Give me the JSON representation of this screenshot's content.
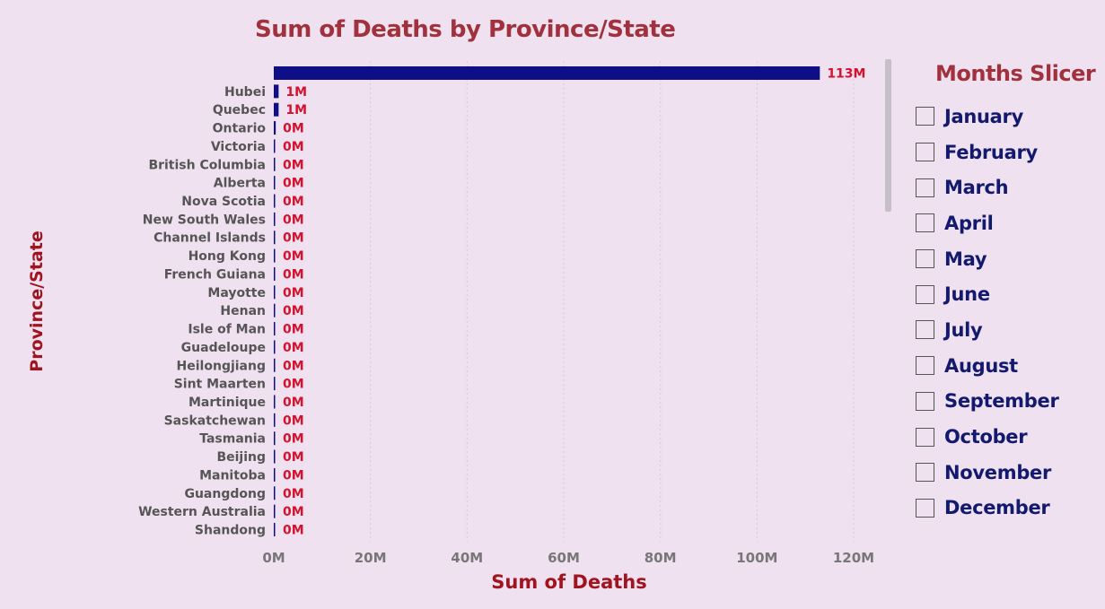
{
  "chart_data": {
    "type": "bar",
    "orientation": "horizontal",
    "title": "Sum of Deaths by Province/State",
    "xlabel": "Sum of Deaths",
    "ylabel": "Province/State",
    "xlim": [
      0,
      125000000
    ],
    "x_ticks": [
      0,
      20000000,
      40000000,
      60000000,
      80000000,
      100000000,
      120000000
    ],
    "x_tick_labels": [
      "0M",
      "20M",
      "40M",
      "60M",
      "80M",
      "100M",
      "120M"
    ],
    "grid": "vertical-dotted",
    "categories": [
      "",
      "Hubei",
      "Quebec",
      "Ontario",
      "Victoria",
      "British Columbia",
      "Alberta",
      "Nova Scotia",
      "New South Wales",
      "Channel Islands",
      "Hong Kong",
      "French Guiana",
      "Mayotte",
      "Henan",
      "Isle of Man",
      "Guadeloupe",
      "Heilongjiang",
      "Sint Maarten",
      "Martinique",
      "Saskatchewan",
      "Tasmania",
      "Beijing",
      "Manitoba",
      "Guangdong",
      "Western Australia",
      "Shandong"
    ],
    "values": [
      113000000,
      1000000,
      1000000,
      400000,
      120000,
      80000,
      60000,
      50000,
      40000,
      30000,
      30000,
      20000,
      20000,
      20000,
      20000,
      20000,
      20000,
      20000,
      20000,
      20000,
      20000,
      20000,
      20000,
      20000,
      20000,
      20000
    ],
    "data_labels": [
      "113M",
      "1M",
      "1M",
      "0M",
      "0M",
      "0M",
      "0M",
      "0M",
      "0M",
      "0M",
      "0M",
      "0M",
      "0M",
      "0M",
      "0M",
      "0M",
      "0M",
      "0M",
      "0M",
      "0M",
      "0M",
      "0M",
      "0M",
      "0M",
      "0M",
      "0M"
    ],
    "bar_color": "#0e0f86",
    "label_color": "#d4122f"
  },
  "slicer": {
    "title": "Months Slicer",
    "items": [
      "January",
      "February",
      "March",
      "April",
      "May",
      "June",
      "July",
      "August",
      "September",
      "October",
      "November",
      "December"
    ]
  },
  "colors": {
    "background": "#efe1ef",
    "title": "#a0313d",
    "axis_title": "#a0131f",
    "category_text": "#555555",
    "tick_text": "#777777",
    "slicer_text": "#131a6e"
  }
}
